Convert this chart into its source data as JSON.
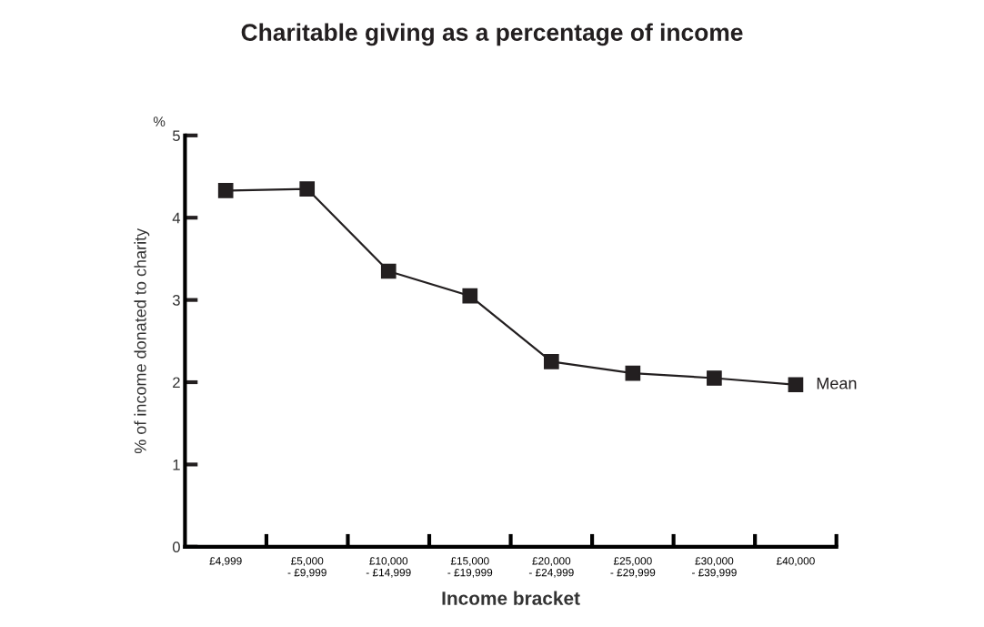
{
  "chart_data": {
    "type": "line",
    "title": "Charitable giving as a percentage of income",
    "xlabel": "Income bracket",
    "ylabel": "% of income donated to charity",
    "annotations": [
      "%"
    ],
    "categories": [
      "£4,999",
      "£5,000\n- £9,999",
      "£10,000\n- £14,999",
      "£15,000\n- £19,999",
      "£20,000\n- £24,999",
      "£25,000\n- £29,999",
      "£30,000\n- £39,999",
      "£40,000"
    ],
    "series": [
      {
        "name": "Mean",
        "color": "#231f20",
        "values": [
          4.33,
          4.35,
          3.35,
          3.05,
          2.25,
          2.11,
          2.05,
          1.97
        ]
      }
    ],
    "ylim": [
      0,
      5
    ],
    "yticks": [
      0,
      1,
      2,
      3,
      4,
      5
    ],
    "grid": false,
    "legend": false,
    "marker": "square",
    "line_style": "solid"
  }
}
